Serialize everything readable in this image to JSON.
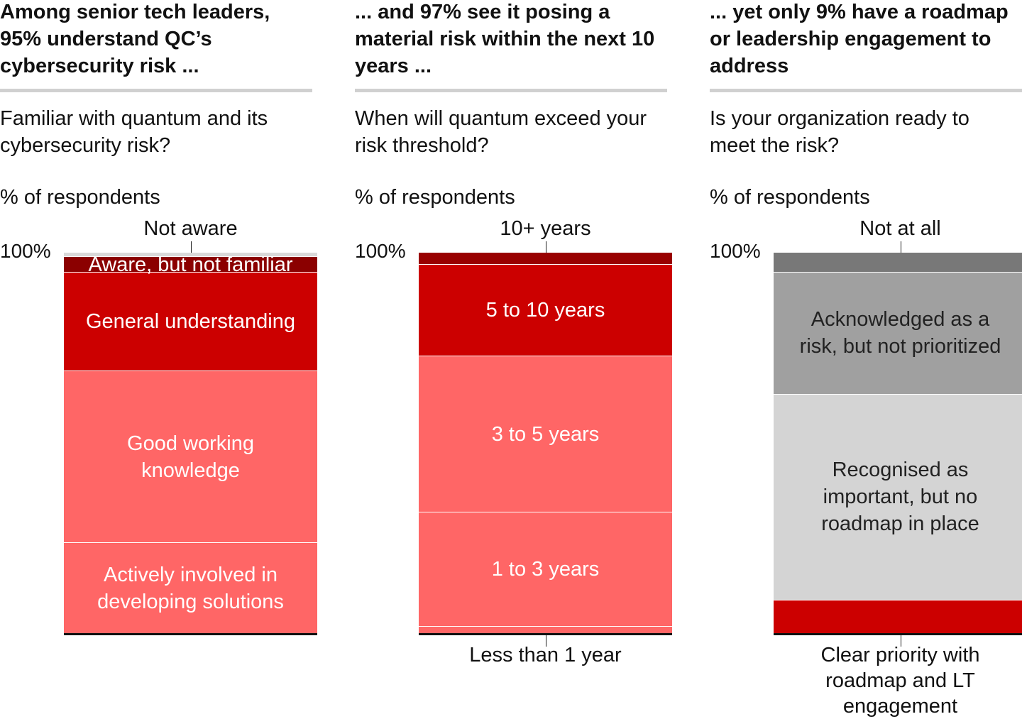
{
  "chart_data": [
    {
      "type": "stacked_bar",
      "title": "Among senior tech leaders, 95% understand QC’s cybersecurity risk ...",
      "subtitle": "Familiar with quantum and its cybersecurity risk?",
      "ylabel": "% of respondents",
      "ylim": [
        0,
        100
      ],
      "yticks": [
        {
          "value": 100,
          "label": "100%"
        }
      ],
      "series": [
        {
          "name": "Actively involved in developing solutions",
          "color": "#ff6666",
          "values": [
            24
          ]
        },
        {
          "name": "Good working knowledge",
          "color": "#ff6666",
          "values": [
            45
          ]
        },
        {
          "name": "General understanding",
          "color": "#cc0000",
          "values": [
            26
          ]
        },
        {
          "name": "Aware, but not familiar",
          "color": "#8b0000",
          "values": [
            4
          ]
        },
        {
          "name": "Not aware",
          "color": "#d9d9d9",
          "values": [
            1
          ]
        }
      ]
    },
    {
      "type": "stacked_bar",
      "title": "... and 97% see it posing a material risk within the next 10 years ...",
      "subtitle": "When will quantum exceed your risk threshold?",
      "ylabel": "% of respondents",
      "ylim": [
        0,
        100
      ],
      "yticks": [
        {
          "value": 100,
          "label": "100%"
        }
      ],
      "series": [
        {
          "name": "Less than 1 year",
          "color": "#ff6666",
          "values": [
            2
          ]
        },
        {
          "name": "1 to 3 years",
          "color": "#ff6666",
          "values": [
            30
          ]
        },
        {
          "name": "3 to 5 years",
          "color": "#ff6666",
          "values": [
            41
          ]
        },
        {
          "name": "5 to 10 years",
          "color": "#cc0000",
          "values": [
            24
          ]
        },
        {
          "name": "10+ years",
          "color": "#990000",
          "values": [
            3
          ]
        }
      ]
    },
    {
      "type": "stacked_bar",
      "title": "... yet only 9% have a roadmap or leadership engagement to address",
      "subtitle": "Is your organization ready to meet the risk?",
      "ylabel": "% of respondents",
      "ylim": [
        0,
        100
      ],
      "yticks": [
        {
          "value": 100,
          "label": "100%"
        }
      ],
      "series": [
        {
          "name": "Clear priority with roadmap and LT engagement",
          "color": "#cc0000",
          "values": [
            9
          ]
        },
        {
          "name": "Recognised as important, but no roadmap in place",
          "color": "#d4d4d4",
          "values": [
            54
          ]
        },
        {
          "name": "Acknowledged as a risk, but not prioritized",
          "color": "#a0a0a0",
          "values": [
            32
          ]
        },
        {
          "name": "Not at all",
          "color": "#787878",
          "values": [
            5
          ]
        }
      ]
    }
  ]
}
